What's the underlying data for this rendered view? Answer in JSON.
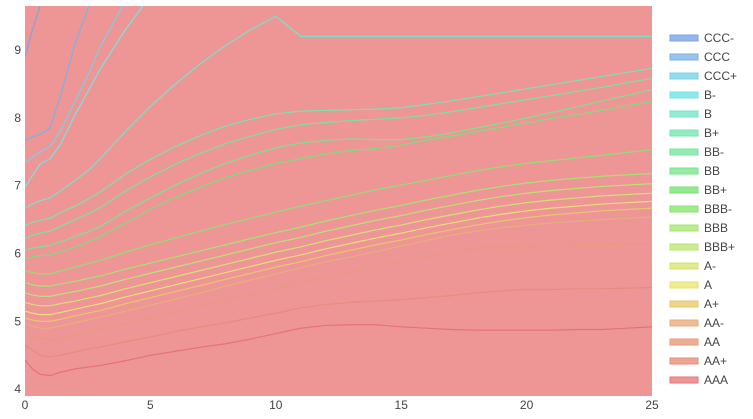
{
  "chart_data": {
    "type": "area",
    "xlim": [
      0,
      25
    ],
    "ylim": [
      3.9,
      9.65
    ],
    "x_ticks": [
      "0",
      "5",
      "10",
      "15",
      "20",
      "25"
    ],
    "y_ticks": [
      "4",
      "5",
      "6",
      "7",
      "8",
      "9"
    ],
    "grid": false,
    "legend_placement": "right",
    "x": [
      0,
      0.3,
      0.6,
      1,
      1.4,
      2,
      2.6,
      3,
      4,
      5,
      6,
      7,
      8,
      9,
      10,
      11,
      12,
      13,
      14,
      15,
      16,
      17,
      18,
      19,
      20,
      21,
      22,
      23,
      24,
      25
    ],
    "series": [
      {
        "name": "AAA",
        "color": "#EE9696",
        "line": "#E8707A",
        "values": [
          4.43,
          4.3,
          4.22,
          4.2,
          4.25,
          4.3,
          4.33,
          4.35,
          4.42,
          4.5,
          4.56,
          4.62,
          4.67,
          4.74,
          4.82,
          4.9,
          4.94,
          4.95,
          4.95,
          4.92,
          4.9,
          4.88,
          4.87,
          4.87,
          4.87,
          4.87,
          4.88,
          4.88,
          4.9,
          4.92
        ]
      },
      {
        "name": "AA+",
        "color": "#EEA393",
        "line": "#E88C7E",
        "values": [
          4.65,
          4.58,
          4.5,
          4.48,
          4.5,
          4.55,
          4.6,
          4.62,
          4.7,
          4.77,
          4.85,
          4.92,
          4.98,
          5.05,
          5.12,
          5.2,
          5.25,
          5.28,
          5.3,
          5.32,
          5.35,
          5.38,
          5.42,
          5.45,
          5.47,
          5.47,
          5.48,
          5.48,
          5.49,
          5.5
        ]
      },
      {
        "name": "AA",
        "color": "#EEAE93",
        "line": "#E89A7E",
        "values": [
          4.83,
          4.78,
          4.75,
          4.73,
          4.75,
          4.8,
          4.85,
          4.88,
          4.97,
          5.05,
          5.14,
          5.23,
          5.32,
          5.4,
          5.48,
          5.57,
          5.65,
          5.72,
          5.8,
          5.88,
          5.95,
          6.02,
          6.08,
          6.1,
          6.11,
          6.12,
          6.13,
          6.13,
          6.14,
          6.15
        ]
      },
      {
        "name": "AA-",
        "color": "#EEBD93",
        "line": "#E8AC7E",
        "values": [
          4.97,
          4.93,
          4.9,
          4.9,
          4.93,
          4.98,
          5.03,
          5.06,
          5.15,
          5.24,
          5.33,
          5.42,
          5.52,
          5.61,
          5.7,
          5.79,
          5.88,
          5.95,
          6.03,
          6.11,
          6.19,
          6.27,
          6.33,
          6.38,
          6.42,
          6.45,
          6.48,
          6.5,
          6.52,
          6.54
        ]
      },
      {
        "name": "A+",
        "color": "#EFD58C",
        "line": "#E6C66E",
        "values": [
          5.05,
          5.02,
          5,
          5,
          5.03,
          5.08,
          5.13,
          5.16,
          5.26,
          5.35,
          5.44,
          5.53,
          5.62,
          5.71,
          5.8,
          5.88,
          5.97,
          6.05,
          6.13,
          6.2,
          6.28,
          6.35,
          6.42,
          6.48,
          6.53,
          6.57,
          6.6,
          6.63,
          6.65,
          6.67
        ]
      },
      {
        "name": "A",
        "color": "#F0EC8E",
        "line": "#E6E078",
        "values": [
          5.15,
          5.12,
          5.1,
          5.1,
          5.13,
          5.18,
          5.23,
          5.26,
          5.36,
          5.45,
          5.54,
          5.63,
          5.72,
          5.81,
          5.9,
          5.98,
          6.07,
          6.15,
          6.23,
          6.3,
          6.38,
          6.45,
          6.52,
          6.58,
          6.63,
          6.67,
          6.7,
          6.73,
          6.75,
          6.77
        ]
      },
      {
        "name": "A-",
        "color": "#E2EC8E",
        "line": "#D4E078",
        "values": [
          5.28,
          5.25,
          5.23,
          5.23,
          5.26,
          5.3,
          5.35,
          5.38,
          5.48,
          5.57,
          5.66,
          5.75,
          5.84,
          5.93,
          6.02,
          6.1,
          6.19,
          6.27,
          6.35,
          6.42,
          6.5,
          6.57,
          6.64,
          6.7,
          6.75,
          6.79,
          6.82,
          6.85,
          6.87,
          6.89
        ]
      },
      {
        "name": "BBB+",
        "color": "#CBEE8E",
        "line": "#BBE278",
        "values": [
          5.42,
          5.39,
          5.37,
          5.37,
          5.4,
          5.44,
          5.49,
          5.52,
          5.62,
          5.71,
          5.8,
          5.89,
          5.98,
          6.07,
          6.16,
          6.24,
          6.33,
          6.41,
          6.49,
          6.56,
          6.64,
          6.71,
          6.78,
          6.84,
          6.89,
          6.93,
          6.96,
          6.99,
          7.01,
          7.03
        ]
      },
      {
        "name": "BBB",
        "color": "#B9EE8C",
        "line": "#A7E274",
        "values": [
          5.57,
          5.54,
          5.52,
          5.52,
          5.55,
          5.59,
          5.64,
          5.67,
          5.77,
          5.86,
          5.95,
          6.04,
          6.13,
          6.22,
          6.31,
          6.39,
          6.48,
          6.56,
          6.64,
          6.71,
          6.79,
          6.86,
          6.93,
          6.99,
          7.04,
          7.08,
          7.11,
          7.14,
          7.16,
          7.18
        ]
      },
      {
        "name": "BBB-",
        "color": "#A2EC8C",
        "line": "#8EDF74",
        "values": [
          5.75,
          5.72,
          5.7,
          5.7,
          5.74,
          5.8,
          5.86,
          5.9,
          6.02,
          6.13,
          6.23,
          6.33,
          6.43,
          6.52,
          6.61,
          6.7,
          6.78,
          6.86,
          6.94,
          7.01,
          7.08,
          7.15,
          7.22,
          7.28,
          7.33,
          7.37,
          7.41,
          7.45,
          7.49,
          7.53
        ]
      },
      {
        "name": "BB+",
        "color": "#93EA8E",
        "line": "#7EDD7A",
        "values": [
          5.92,
          5.95,
          5.97,
          5.98,
          6.02,
          6.1,
          6.18,
          6.25,
          6.45,
          6.65,
          6.83,
          6.98,
          7.12,
          7.23,
          7.33,
          7.4,
          7.47,
          7.52,
          7.55,
          7.6,
          7.67,
          7.73,
          7.8,
          7.86,
          7.93,
          7.99,
          8.05,
          8.11,
          8.18,
          8.24
        ]
      },
      {
        "name": "BB",
        "color": "#94EBA2",
        "line": "#7EE090",
        "values": [
          6.05,
          6.08,
          6.1,
          6.12,
          6.17,
          6.25,
          6.33,
          6.4,
          6.62,
          6.82,
          7.01,
          7.18,
          7.33,
          7.45,
          7.56,
          7.63,
          7.67,
          7.69,
          7.68,
          7.68,
          7.72,
          7.78,
          7.85,
          7.92,
          8,
          8.08,
          8.16,
          8.25,
          8.33,
          8.42
        ]
      },
      {
        "name": "BB-",
        "color": "#92EBB0",
        "line": "#7CE0A0",
        "values": [
          6.22,
          6.27,
          6.3,
          6.33,
          6.4,
          6.5,
          6.6,
          6.68,
          6.92,
          7.13,
          7.32,
          7.48,
          7.62,
          7.73,
          7.83,
          7.9,
          7.93,
          7.96,
          7.98,
          8,
          8.04,
          8.09,
          8.15,
          8.21,
          8.27,
          8.33,
          8.39,
          8.45,
          8.52,
          8.58
        ]
      },
      {
        "name": "B+",
        "color": "#93EBC1",
        "line": "#7DE0B2",
        "values": [
          6.42,
          6.46,
          6.49,
          6.52,
          6.6,
          6.7,
          6.82,
          6.91,
          7.17,
          7.39,
          7.58,
          7.74,
          7.88,
          7.98,
          8.06,
          8.1,
          8.11,
          8.12,
          8.13,
          8.15,
          8.2,
          8.25,
          8.31,
          8.37,
          8.43,
          8.49,
          8.55,
          8.61,
          8.67,
          8.73
        ]
      },
      {
        "name": "B",
        "color": "#92EBD6",
        "line": "#7CE0C8",
        "values": [
          6.67,
          6.73,
          6.78,
          6.82,
          6.92,
          7.08,
          7.25,
          7.4,
          7.8,
          8.17,
          8.5,
          8.8,
          9.07,
          9.3,
          9.5,
          9.2,
          9.2,
          9.2,
          9.2,
          9.2,
          9.2,
          9.2,
          9.2,
          9.2,
          9.2,
          9.2,
          9.2,
          9.2,
          9.2,
          9.2
        ]
      },
      {
        "name": "B-",
        "color": "#8FE8E8",
        "line": "#77E3E3",
        "values": [
          6.98,
          7.15,
          7.32,
          7.4,
          7.6,
          8.05,
          8.45,
          8.72,
          9.3,
          9.8,
          10,
          10,
          10,
          10,
          10,
          10,
          10,
          10,
          10,
          10,
          10,
          10,
          10,
          10,
          10,
          10,
          10,
          10,
          10,
          10
        ]
      },
      {
        "name": "CCC+",
        "color": "#95DCEC",
        "line": "#7BCFE3",
        "values": [
          7.35,
          7.42,
          7.5,
          7.58,
          7.8,
          8.25,
          8.7,
          9.05,
          9.72,
          10,
          10,
          10,
          10,
          10,
          10,
          10,
          10,
          10,
          10,
          10,
          10,
          10,
          10,
          10,
          10,
          10,
          10,
          10,
          10,
          10
        ]
      },
      {
        "name": "CCC",
        "color": "#96C4EC",
        "line": "#7DB1E3",
        "values": [
          7.67,
          7.72,
          7.76,
          7.85,
          8.3,
          9.1,
          9.7,
          10,
          10,
          10,
          10,
          10,
          10,
          10,
          10,
          10,
          10,
          10,
          10,
          10,
          10,
          10,
          10,
          10,
          10,
          10,
          10,
          10,
          10,
          10
        ]
      },
      {
        "name": "CCC-",
        "color": "#94B6EC",
        "line": "#7FA3E3",
        "values": [
          8.9,
          9.3,
          9.65,
          10,
          10,
          10,
          10,
          10,
          10,
          10,
          10,
          10,
          10,
          10,
          10,
          10,
          10,
          10,
          10,
          10,
          10,
          10,
          10,
          10,
          10,
          10,
          10,
          10,
          10,
          10
        ]
      }
    ]
  }
}
